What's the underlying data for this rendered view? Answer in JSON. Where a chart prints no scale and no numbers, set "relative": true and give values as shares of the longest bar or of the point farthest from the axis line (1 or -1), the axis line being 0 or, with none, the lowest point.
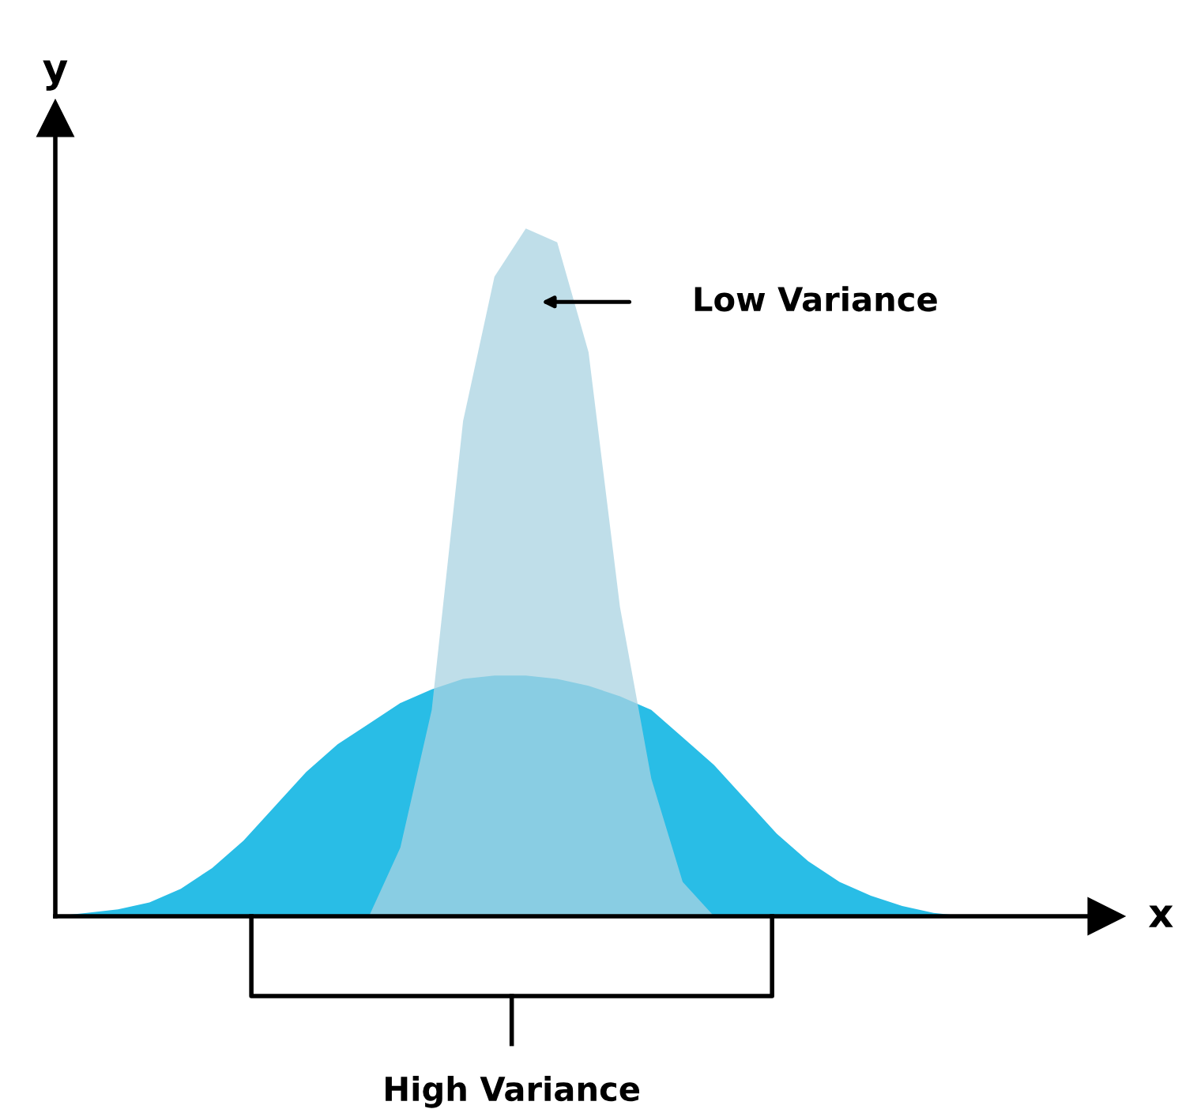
{
  "chart_data": {
    "type": "area",
    "relative": true,
    "xlabel": "x",
    "ylabel": "y",
    "categories": [
      null,
      null,
      null,
      null,
      null,
      null,
      null,
      null,
      null,
      null,
      null,
      null,
      null,
      null,
      null,
      null,
      null,
      null,
      null,
      null,
      null,
      null,
      null,
      null,
      null,
      null,
      null,
      null,
      null,
      null,
      null,
      null,
      null,
      null
    ],
    "series": [
      {
        "color": "#29bde6",
        "values": [
          0,
          0.005,
          0.01,
          0.02,
          0.04,
          0.07,
          0.11,
          0.16,
          0.21,
          0.25,
          0.28,
          0.31,
          0.33,
          0.345,
          0.35,
          0.35,
          0.345,
          0.335,
          0.32,
          0.3,
          0.26,
          0.22,
          0.17,
          0.12,
          0.08,
          0.05,
          0.03,
          0.015,
          0.005,
          0,
          0,
          0,
          0,
          0
        ]
      },
      {
        "color": "#a9d3e1",
        "values": [
          null,
          null,
          null,
          null,
          null,
          null,
          null,
          null,
          null,
          null,
          0,
          0.1,
          0.3,
          0.72,
          0.93,
          1.0,
          0.98,
          0.82,
          0.45,
          0.2,
          0.05,
          0,
          null,
          null,
          null,
          null,
          null,
          null,
          null,
          null,
          null,
          null,
          null,
          null
        ]
      }
    ],
    "annotations": [
      "Low Variance",
      "High Variance"
    ]
  }
}
